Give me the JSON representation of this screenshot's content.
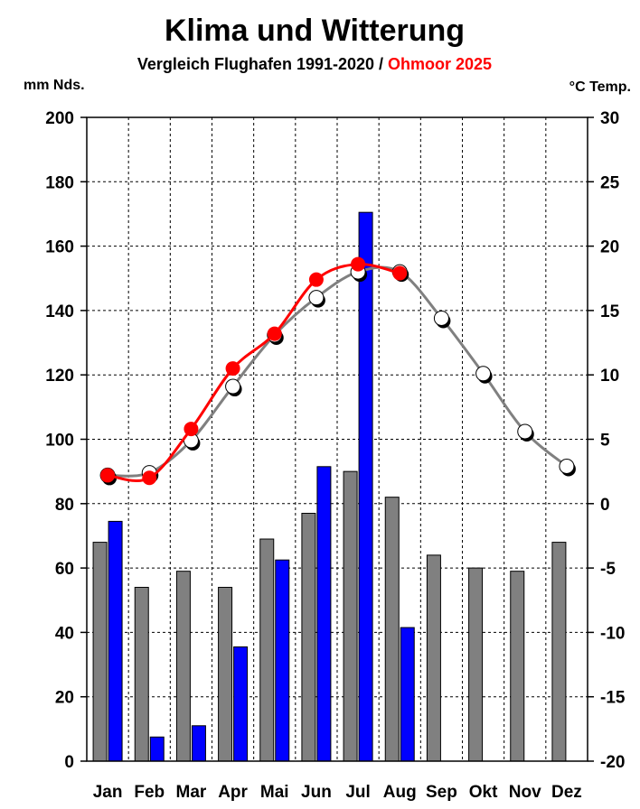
{
  "chart_data": {
    "type": "bar",
    "title": "Klima und Witterung",
    "subtitle": {
      "part1": "Vergleich Flughafen 1991-2020 / ",
      "part2": "Ohmoor 2025"
    },
    "y_left_label": "mm Nds.",
    "y_right_label": "°C Temp.",
    "y_left_range": [
      0,
      200
    ],
    "y_left_ticks": [
      "0",
      "20",
      "40",
      "60",
      "80",
      "100",
      "120",
      "140",
      "160",
      "180",
      "200"
    ],
    "y_right_range": [
      -20,
      30
    ],
    "y_right_ticks": [
      "-20",
      "-15",
      "-10",
      "-5",
      "0",
      "5",
      "10",
      "15",
      "20",
      "25",
      "30"
    ],
    "grid": true,
    "categories": [
      "Jan",
      "Feb",
      "Mar",
      "Apr",
      "Mai",
      "Jun",
      "Jul",
      "Aug",
      "Sep",
      "Okt",
      "Nov",
      "Dez"
    ],
    "precip_normal": [
      68,
      54,
      59,
      54,
      69,
      77,
      90,
      82,
      64,
      60,
      59,
      68
    ],
    "precip_2025": [
      74.5,
      7.5,
      11,
      35.5,
      62.5,
      91.5,
      170.5,
      41.5,
      null,
      null,
      null,
      null
    ],
    "temp_normal": [
      2.2,
      2.4,
      4.9,
      9.1,
      13.1,
      16.0,
      18.0,
      18.0,
      14.4,
      10.1,
      5.6,
      2.9
    ],
    "temp_2025": [
      2.2,
      2.0,
      5.8,
      10.5,
      13.2,
      17.4,
      18.6,
      17.9,
      null,
      null,
      null,
      null
    ],
    "colors": {
      "precip_normal": "#808080",
      "precip_2025": "#0000ff",
      "temp_normal_line": "#808080",
      "temp_normal_marker": "#ffffff",
      "temp_2025": "#ff0000"
    }
  }
}
